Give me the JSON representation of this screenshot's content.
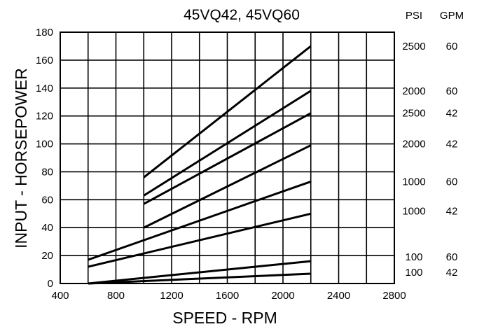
{
  "chart_data": {
    "type": "line",
    "title": "45VQ42, 45VQ60",
    "xlabel": "SPEED - RPM",
    "ylabel": "INPUT - HORSEPOWER",
    "xlim": [
      400,
      2800
    ],
    "ylim": [
      0,
      180
    ],
    "xticks": [
      "400",
      "800",
      "1200",
      "1600",
      "2000",
      "2400",
      "2800"
    ],
    "yticks": [
      "0",
      "20",
      "40",
      "60",
      "80",
      "100",
      "120",
      "140",
      "160",
      "180"
    ],
    "grid": true,
    "right_headers": {
      "psi": "PSI",
      "gpm": "GPM"
    },
    "series": [
      {
        "psi": "2500",
        "gpm": "60",
        "x": [
          1000,
          2200
        ],
        "y": [
          76,
          170
        ],
        "label_y": 170
      },
      {
        "psi": "2000",
        "gpm": "60",
        "x": [
          1000,
          2200
        ],
        "y": [
          63,
          138
        ],
        "label_y": 138
      },
      {
        "psi": "2500",
        "gpm": "42",
        "x": [
          1000,
          2200
        ],
        "y": [
          57,
          122
        ],
        "label_y": 122
      },
      {
        "psi": "2000",
        "gpm": "42",
        "x": [
          1000,
          2200
        ],
        "y": [
          40,
          99
        ],
        "label_y": 100
      },
      {
        "psi": "1000",
        "gpm": "60",
        "x": [
          600,
          2200
        ],
        "y": [
          17,
          73
        ],
        "label_y": 73
      },
      {
        "psi": "1000",
        "gpm": "42",
        "x": [
          600,
          2200
        ],
        "y": [
          12,
          50
        ],
        "label_y": 52
      },
      {
        "psi": "100",
        "gpm": "60",
        "x": [
          600,
          2200
        ],
        "y": [
          0,
          16
        ],
        "label_y": 19
      },
      {
        "psi": "100",
        "gpm": "42",
        "x": [
          600,
          2200
        ],
        "y": [
          0,
          7
        ],
        "label_y": 8
      }
    ]
  }
}
